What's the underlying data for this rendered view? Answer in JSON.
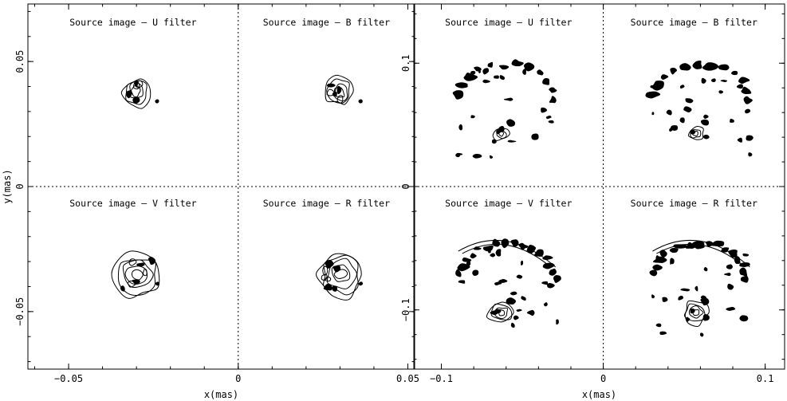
{
  "chart_data": [
    {
      "type": "contour",
      "panels": [
        {
          "title": "Source image – U filter",
          "position": "top-left"
        },
        {
          "title": "Source image – B filter",
          "position": "top-right"
        },
        {
          "title": "Source image – V filter",
          "position": "bottom-left"
        },
        {
          "title": "Source image – R filter",
          "position": "bottom-right"
        }
      ],
      "xlabel": "x(mas)",
      "ylabel": "y(mas)",
      "xlim": [
        -0.062,
        0.052
      ],
      "ylim": [
        -0.073,
        0.073
      ],
      "xticks": [
        {
          "value": -0.05,
          "label": "−0.05"
        },
        {
          "value": 0,
          "label": "0"
        },
        {
          "value": 0.05,
          "label": "0.05"
        }
      ],
      "yticks": [
        {
          "value": 0.05,
          "label": "0.05"
        },
        {
          "value": 0,
          "label": "0"
        },
        {
          "value": -0.05,
          "label": "−0.05"
        }
      ],
      "dividers": {
        "x": 0,
        "y": 0
      },
      "source_centers": [
        [
          -0.03,
          0.038
        ],
        [
          0.03,
          0.038
        ],
        [
          -0.03,
          -0.035
        ],
        [
          0.03,
          -0.035
        ]
      ]
    },
    {
      "type": "contour",
      "panels": [
        {
          "title": "Source image – U filter",
          "position": "top-left"
        },
        {
          "title": "Source image – B filter",
          "position": "top-right"
        },
        {
          "title": "Source image – V filter",
          "position": "bottom-left"
        },
        {
          "title": "Source image – R filter",
          "position": "bottom-right"
        }
      ],
      "xlabel": "x(mas)",
      "ylabel": "",
      "xlim": [
        -0.117,
        0.112
      ],
      "ylim": [
        -0.148,
        0.148
      ],
      "xticks": [
        {
          "value": -0.1,
          "label": "−0.1"
        },
        {
          "value": 0,
          "label": "0"
        },
        {
          "value": 0.1,
          "label": "0.1"
        }
      ],
      "yticks": [
        {
          "value": 0.1,
          "label": "0.1"
        },
        {
          "value": 0,
          "label": "0"
        },
        {
          "value": -0.1,
          "label": "−0.1"
        }
      ],
      "dividers": {
        "x": 0,
        "y": 0
      },
      "source_centers": [
        [
          -0.06,
          0.07
        ],
        [
          0.06,
          0.07
        ],
        [
          -0.06,
          -0.075
        ],
        [
          0.06,
          -0.075
        ]
      ]
    }
  ]
}
